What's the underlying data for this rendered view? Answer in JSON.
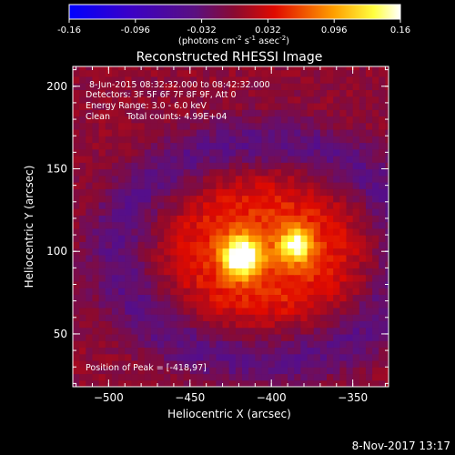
{
  "colorbar": {
    "ticks": [
      "-0.16",
      "-0.096",
      "-0.032",
      "0.032",
      "0.096",
      "0.16"
    ],
    "unit_main": "(photons cm",
    "unit_exp1": "-2",
    "unit_mid": " s",
    "unit_exp2": "-1",
    "unit_mid2": " asec",
    "unit_exp3": "-2",
    "unit_end": ")",
    "range": [
      -0.16,
      0.16
    ],
    "colors": [
      "#0000ff",
      "#ff0000",
      "#ffff00",
      "#ffffff"
    ]
  },
  "chart_data": {
    "type": "heatmap",
    "title": "Reconstructed RHESSI Image",
    "xlabel": "Heliocentric X (arcsec)",
    "ylabel": "Heliocentric Y (arcsec)",
    "xlim": [
      -522,
      -328
    ],
    "ylim": [
      18,
      212
    ],
    "x_ticks": [
      -500,
      -450,
      -400,
      -350
    ],
    "y_ticks": [
      50,
      100,
      150,
      200
    ],
    "x_tick_labels": [
      "−500",
      "−450",
      "−400",
      "−350"
    ],
    "y_tick_labels": [
      "50",
      "100",
      "150",
      "200"
    ],
    "sources": [
      {
        "x": -418,
        "y": 97,
        "intensity": 0.16
      },
      {
        "x": -385,
        "y": 104,
        "intensity": 0.11
      }
    ],
    "annotations": [
      "8-Jun-2015 08:32:32.000 to 08:42:32.000",
      "Detectors: 3F 5F 6F 7F 8F 9F, Att 0",
      "Energy Range: 3.0 - 6.0 keV",
      "Clean      Total counts: 4.99E+04",
      "Position of Peak = [-418,97]"
    ]
  },
  "footer": {
    "date": "8-Nov-2017 13:17"
  }
}
